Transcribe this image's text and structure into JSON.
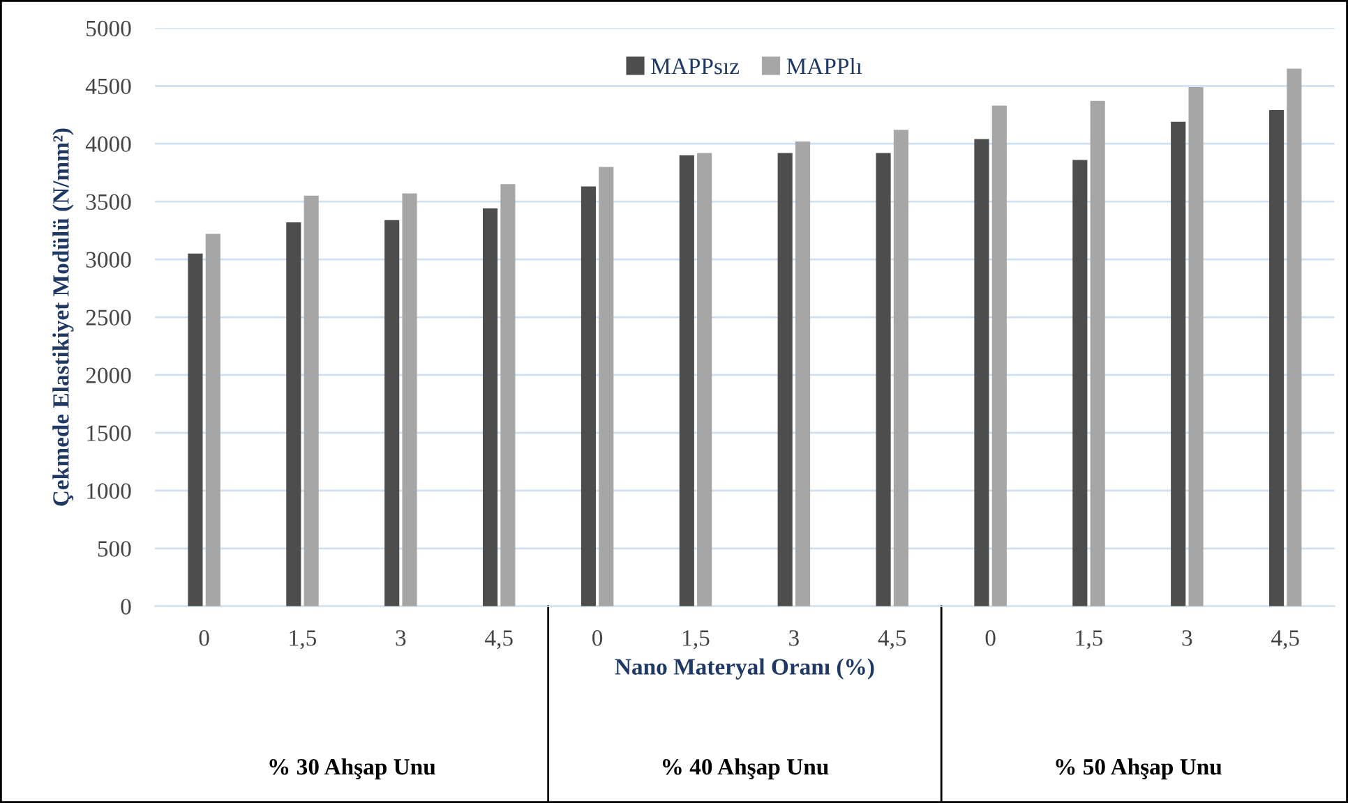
{
  "chart_data": {
    "type": "bar",
    "ylabel": "Çekmede Elastikiyet Modülü (N/mm²)",
    "xlabel": "Nano Materyal Oranı (%)",
    "categories": [
      "0",
      "1,5",
      "3",
      "4,5",
      "0",
      "1,5",
      "3",
      "4,5",
      "0",
      "1,5",
      "3",
      "4,5"
    ],
    "series": [
      {
        "name": "MAPPsız",
        "color": "#4d4d4d",
        "values": [
          3050,
          3320,
          3340,
          3440,
          3630,
          3900,
          3920,
          3920,
          4040,
          3860,
          4190,
          4290
        ]
      },
      {
        "name": "MAPPlı",
        "color": "#a6a6a6",
        "values": [
          3220,
          3550,
          3570,
          3650,
          3800,
          3920,
          4020,
          4120,
          4330,
          4370,
          4490,
          4650
        ]
      }
    ],
    "annotations": [
      "% 30 Ahşap Unu",
      "% 40 Ahşap Unu",
      "% 50 Ahşap Unu"
    ],
    "ylim": [
      0,
      5000
    ],
    "yticks": [
      0,
      500,
      1000,
      1500,
      2000,
      2500,
      3000,
      3500,
      4000,
      4500,
      5000
    ],
    "grid": "y",
    "legend": "top"
  }
}
